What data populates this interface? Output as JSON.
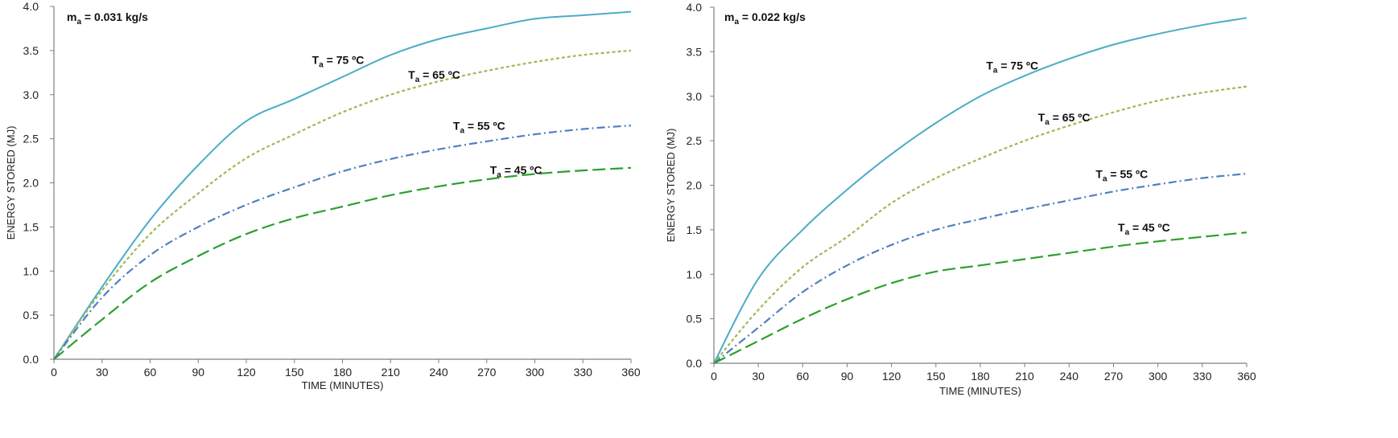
{
  "chart_data": [
    {
      "type": "line",
      "annotation": {
        "prefix": "m",
        "subscript": "a",
        "text": " = 0.031 kg/s"
      },
      "xlabel": "TIME (MINUTES)",
      "ylabel": "ENERGY STORED (MJ)",
      "xlim": [
        0,
        360
      ],
      "ylim": [
        0,
        4.0
      ],
      "xticks": [
        "0",
        "30",
        "60",
        "90",
        "120",
        "150",
        "180",
        "210",
        "240",
        "270",
        "300",
        "330",
        "360"
      ],
      "yticks": [
        "0.0",
        "0.5",
        "1.0",
        "1.5",
        "2.0",
        "2.5",
        "3.0",
        "3.5",
        "4.0"
      ],
      "grid": false,
      "series": [
        {
          "name": "75 ºC",
          "color": "#4bacc6",
          "dash": "solid",
          "x": [
            0,
            30,
            60,
            90,
            120,
            150,
            180,
            210,
            240,
            270,
            300,
            330,
            360
          ],
          "y": [
            0,
            0.82,
            1.58,
            2.2,
            2.7,
            2.95,
            3.2,
            3.45,
            3.63,
            3.75,
            3.86,
            3.9,
            3.94
          ],
          "label": {
            "prefix": "T",
            "subscript": "a",
            "text": " = 75 ºC",
            "at": [
              161,
              3.35
            ]
          }
        },
        {
          "name": "65 ºC",
          "color": "#9bbb59",
          "dash": "dotted",
          "x": [
            0,
            30,
            60,
            90,
            120,
            150,
            180,
            210,
            240,
            270,
            300,
            330,
            360
          ],
          "y": [
            0,
            0.78,
            1.42,
            1.88,
            2.28,
            2.55,
            2.8,
            3.0,
            3.15,
            3.27,
            3.37,
            3.45,
            3.5
          ],
          "label": {
            "prefix": "T",
            "subscript": "a",
            "text": " = 65 ºC",
            "at": [
              221,
              3.18
            ]
          }
        },
        {
          "name": "55 ºC",
          "color": "#4f81bd",
          "dash": "dashdot",
          "x": [
            0,
            30,
            60,
            90,
            120,
            150,
            180,
            210,
            240,
            270,
            300,
            330,
            360
          ],
          "y": [
            0,
            0.7,
            1.18,
            1.5,
            1.75,
            1.95,
            2.13,
            2.27,
            2.38,
            2.47,
            2.55,
            2.61,
            2.65
          ],
          "label": {
            "prefix": "T",
            "subscript": "a",
            "text": " = 55 ºC",
            "at": [
              249,
              2.6
            ]
          }
        },
        {
          "name": "45 ºC",
          "color": "#2ca02c",
          "dash": "longdash",
          "x": [
            0,
            30,
            60,
            90,
            120,
            150,
            180,
            210,
            240,
            270,
            300,
            330,
            360
          ],
          "y": [
            0,
            0.45,
            0.87,
            1.17,
            1.42,
            1.6,
            1.73,
            1.86,
            1.96,
            2.04,
            2.1,
            2.14,
            2.17
          ],
          "label": {
            "prefix": "T",
            "subscript": "a",
            "text": " = 45 ºC",
            "at": [
              272,
              2.1
            ]
          }
        }
      ]
    },
    {
      "type": "line",
      "annotation": {
        "prefix": "m",
        "subscript": "a",
        "text": " = 0.022 kg/s"
      },
      "xlabel": "TIME (MINUTES)",
      "ylabel": "ENERGY STORED (MJ)",
      "xlim": [
        0,
        360
      ],
      "ylim": [
        0,
        4.0
      ],
      "xticks": [
        "0",
        "30",
        "60",
        "90",
        "120",
        "150",
        "180",
        "210",
        "240",
        "270",
        "300",
        "330",
        "360"
      ],
      "yticks": [
        "0.0",
        "0.5",
        "1.0",
        "1.5",
        "2.0",
        "2.5",
        "3.0",
        "3.5",
        "4.0"
      ],
      "grid": false,
      "series": [
        {
          "name": "75 ºC",
          "color": "#4bacc6",
          "dash": "solid",
          "x": [
            0,
            30,
            60,
            90,
            120,
            150,
            180,
            210,
            240,
            270,
            300,
            330,
            360
          ],
          "y": [
            0,
            0.95,
            1.5,
            1.95,
            2.35,
            2.7,
            3.0,
            3.23,
            3.42,
            3.58,
            3.7,
            3.8,
            3.88
          ],
          "label": {
            "prefix": "T",
            "subscript": "a",
            "text": " = 75 ºC",
            "at": [
              184,
              3.3
            ]
          }
        },
        {
          "name": "65 ºC",
          "color": "#9bbb59",
          "dash": "dotted",
          "x": [
            0,
            30,
            60,
            90,
            120,
            150,
            180,
            210,
            240,
            270,
            300,
            330,
            360
          ],
          "y": [
            0,
            0.6,
            1.08,
            1.42,
            1.8,
            2.08,
            2.3,
            2.5,
            2.67,
            2.82,
            2.95,
            3.04,
            3.11
          ],
          "label": {
            "prefix": "T",
            "subscript": "a",
            "text": " = 65 ºC",
            "at": [
              219,
              2.72
            ]
          }
        },
        {
          "name": "55 ºC",
          "color": "#4f81bd",
          "dash": "dashdot",
          "x": [
            0,
            30,
            60,
            90,
            120,
            150,
            180,
            210,
            240,
            270,
            300,
            330,
            360
          ],
          "y": [
            0,
            0.4,
            0.8,
            1.1,
            1.33,
            1.5,
            1.62,
            1.73,
            1.83,
            1.93,
            2.01,
            2.08,
            2.13
          ],
          "label": {
            "prefix": "T",
            "subscript": "a",
            "text": " = 55 ºC",
            "at": [
              258,
              2.08
            ]
          }
        },
        {
          "name": "45 ºC",
          "color": "#2ca02c",
          "dash": "longdash",
          "x": [
            0,
            30,
            60,
            90,
            120,
            150,
            180,
            210,
            240,
            270,
            300,
            330,
            360
          ],
          "y": [
            0,
            0.25,
            0.5,
            0.72,
            0.9,
            1.03,
            1.1,
            1.17,
            1.24,
            1.31,
            1.37,
            1.42,
            1.47
          ],
          "label": {
            "prefix": "T",
            "subscript": "a",
            "text": " = 45 ºC",
            "at": [
              273,
              1.48
            ]
          }
        }
      ]
    }
  ]
}
